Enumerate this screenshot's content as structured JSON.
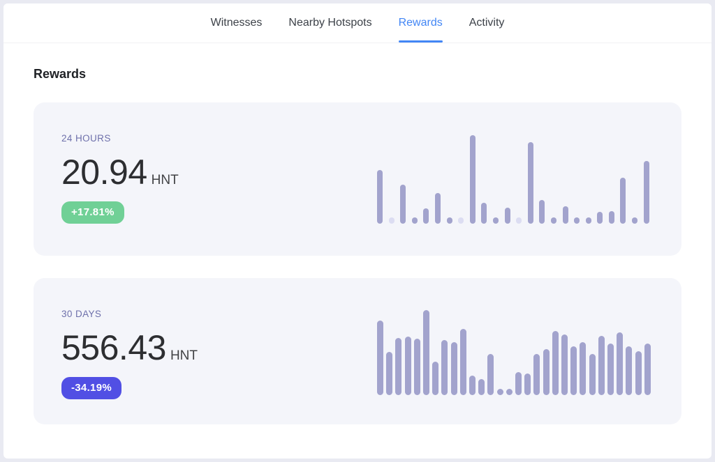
{
  "nav": {
    "tabs": [
      {
        "label": "Witnesses",
        "active": false
      },
      {
        "label": "Nearby Hotspots",
        "active": false
      },
      {
        "label": "Rewards",
        "active": true
      },
      {
        "label": "Activity",
        "active": false
      }
    ]
  },
  "heading": "Rewards",
  "cards": [
    {
      "period": "24 HOURS",
      "value": "20.94",
      "unit": "HNT",
      "change": "+17.81%",
      "change_direction": "up"
    },
    {
      "period": "30 DAYS",
      "value": "556.43",
      "unit": "HNT",
      "change": "-34.19%",
      "change_direction": "down"
    }
  ],
  "colors": {
    "tab_active": "#4286f5",
    "card_background": "#f4f5fa",
    "period_label": "#6e70ab",
    "bar": "#a2a3cd",
    "bar_muted": "#dcddf2",
    "badge_positive": "#70d096",
    "badge_negative": "#514fe4",
    "page_border": "#e9eaf2"
  },
  "chart_data": [
    {
      "type": "bar",
      "title": "24 hour hourly rewards sparkline",
      "categories": null,
      "values": [
        61,
        0,
        44,
        2,
        17,
        35,
        2,
        0,
        100,
        24,
        2,
        18,
        0,
        92,
        27,
        2,
        20,
        2,
        2,
        13,
        14,
        52,
        2,
        71
      ],
      "muted_indices": [
        1,
        7,
        12
      ],
      "units": "relative height, max = 100 (no axis labels shown)",
      "ylim": [
        0,
        100
      ],
      "grid": false,
      "axes_visible": false,
      "legend": false
    },
    {
      "type": "bar",
      "title": "30 day daily rewards sparkline",
      "categories": null,
      "values": [
        88,
        51,
        67,
        69,
        66,
        100,
        39,
        65,
        62,
        78,
        23,
        19,
        48,
        2,
        2,
        27,
        25,
        48,
        54,
        75,
        71,
        57,
        62,
        48,
        70,
        61,
        74,
        57,
        52,
        61
      ],
      "muted_indices": [],
      "units": "relative height, max = 100 (no axis labels shown)",
      "ylim": [
        0,
        100
      ],
      "grid": false,
      "axes_visible": false,
      "legend": false
    }
  ]
}
